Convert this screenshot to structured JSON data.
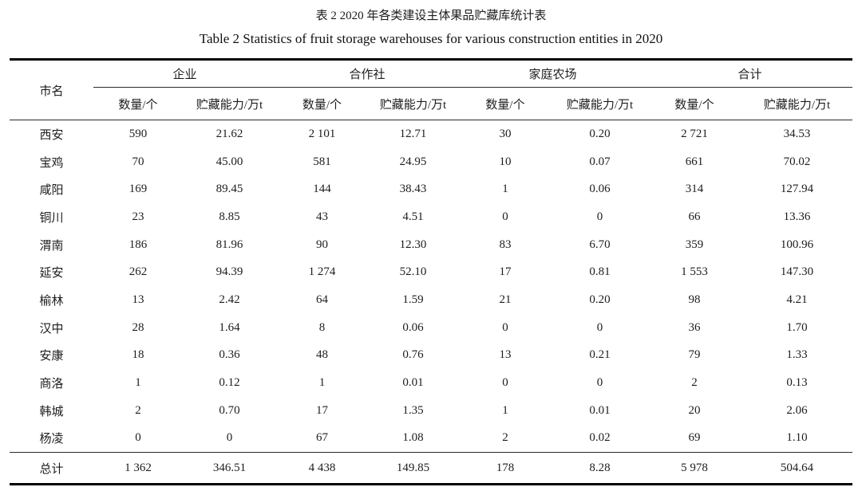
{
  "titles": {
    "zh": "表 2 2020 年各类建设主体果品贮藏库统计表",
    "en": "Table 2 Statistics of fruit storage warehouses for various construction entities in 2020"
  },
  "table": {
    "header": {
      "city": "市名",
      "groups": [
        {
          "label": "企业"
        },
        {
          "label": "合作社"
        },
        {
          "label": "家庭农场"
        },
        {
          "label": "合计"
        }
      ],
      "subheaders": [
        "数量/个",
        "贮藏能力/万t",
        "数量/个",
        "贮藏能力/万t",
        "数量/个",
        "贮藏能力/万t",
        "数量/个",
        "贮藏能力/万t"
      ]
    },
    "rows": [
      {
        "city": "西安",
        "values": [
          "590",
          "21.62",
          "2 101",
          "12.71",
          "30",
          "0.20",
          "2 721",
          "34.53"
        ]
      },
      {
        "city": "宝鸡",
        "values": [
          "70",
          "45.00",
          "581",
          "24.95",
          "10",
          "0.07",
          "661",
          "70.02"
        ]
      },
      {
        "city": "咸阳",
        "values": [
          "169",
          "89.45",
          "144",
          "38.43",
          "1",
          "0.06",
          "314",
          "127.94"
        ]
      },
      {
        "city": "铜川",
        "values": [
          "23",
          "8.85",
          "43",
          "4.51",
          "0",
          "0",
          "66",
          "13.36"
        ]
      },
      {
        "city": "渭南",
        "values": [
          "186",
          "81.96",
          "90",
          "12.30",
          "83",
          "6.70",
          "359",
          "100.96"
        ]
      },
      {
        "city": "延安",
        "values": [
          "262",
          "94.39",
          "1 274",
          "52.10",
          "17",
          "0.81",
          "1 553",
          "147.30"
        ]
      },
      {
        "city": "榆林",
        "values": [
          "13",
          "2.42",
          "64",
          "1.59",
          "21",
          "0.20",
          "98",
          "4.21"
        ]
      },
      {
        "city": "汉中",
        "values": [
          "28",
          "1.64",
          "8",
          "0.06",
          "0",
          "0",
          "36",
          "1.70"
        ]
      },
      {
        "city": "安康",
        "values": [
          "18",
          "0.36",
          "48",
          "0.76",
          "13",
          "0.21",
          "79",
          "1.33"
        ]
      },
      {
        "city": "商洛",
        "values": [
          "1",
          "0.12",
          "1",
          "0.01",
          "0",
          "0",
          "2",
          "0.13"
        ]
      },
      {
        "city": "韩城",
        "values": [
          "2",
          "0.70",
          "17",
          "1.35",
          "1",
          "0.01",
          "20",
          "2.06"
        ]
      },
      {
        "city": "杨凌",
        "values": [
          "0",
          "0",
          "67",
          "1.08",
          "2",
          "0.02",
          "69",
          "1.10"
        ]
      }
    ],
    "total": {
      "city": "总计",
      "values": [
        "1 362",
        "346.51",
        "4 438",
        "149.85",
        "178",
        "8.28",
        "5 978",
        "504.64"
      ]
    }
  }
}
